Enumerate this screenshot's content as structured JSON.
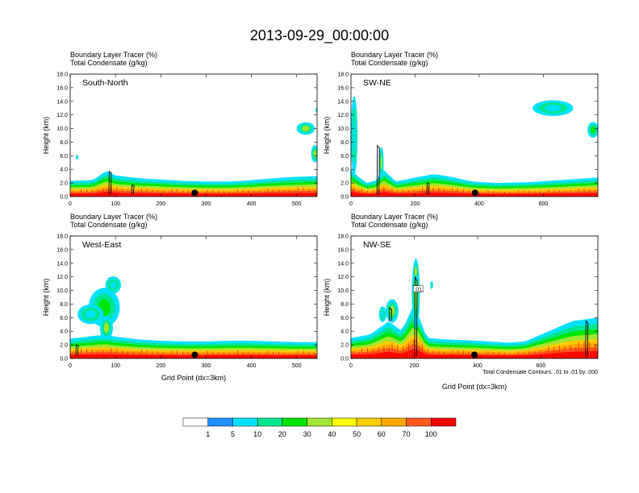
{
  "title": "2013-09-29_00:00:00",
  "chart_data": [
    {
      "type": "heatmap",
      "panel_label": "South-North",
      "subtitle_line1": "Boundary Layer Tracer   (%)",
      "subtitle_line2": "Total Condensate   (g/kg)",
      "xlabel": "",
      "ylabel": "Height (km)",
      "xlim": [
        0,
        545
      ],
      "ylim": [
        0,
        18
      ],
      "x_ticks": [
        0,
        100,
        200,
        300,
        400,
        500
      ],
      "x_tick_labels": [
        "0",
        "100",
        "200",
        "300",
        "400",
        "500"
      ],
      "y_ticks": [
        0,
        2,
        4,
        6,
        8,
        10,
        12,
        14,
        16,
        18
      ],
      "y_tick_labels": [
        "0.0",
        "2.0",
        "4.0",
        "6.0",
        "8.0",
        "10.0",
        "12.0",
        "14.0",
        "16.0",
        "18.0"
      ],
      "bl_top": [
        [
          0,
          2.3
        ],
        [
          50,
          2.4
        ],
        [
          80,
          3.8
        ],
        [
          100,
          3.1
        ],
        [
          150,
          2.7
        ],
        [
          200,
          2.5
        ],
        [
          250,
          2.3
        ],
        [
          300,
          2.2
        ],
        [
          350,
          2.2
        ],
        [
          400,
          2.4
        ],
        [
          450,
          2.7
        ],
        [
          500,
          2.9
        ],
        [
          545,
          3.0
        ]
      ],
      "clouds": [
        {
          "x": 520,
          "y": 10.0,
          "w": 35,
          "h": 1.6,
          "level": 30
        },
        {
          "x": 540,
          "y": 6.3,
          "w": 14,
          "h": 2.2,
          "level": 30
        },
        {
          "x": 545,
          "y": 12.7,
          "w": 6,
          "h": 0.7,
          "level": 5
        },
        {
          "x": 15,
          "y": 5.8,
          "w": 5,
          "h": 0.6,
          "level": 5
        }
      ],
      "contours": [
        {
          "x": 88,
          "y0": 0.3,
          "y1": 3.7
        },
        {
          "x": 138,
          "y0": 0.3,
          "y1": 1.7
        }
      ],
      "marker": {
        "x": 275,
        "y": 0.55
      }
    },
    {
      "type": "heatmap",
      "panel_label": "SW-NE",
      "subtitle_line1": "Boundary Layer Tracer   (%)",
      "subtitle_line2": "Total Condensate   (g/kg)",
      "xlabel": "",
      "ylabel": "Height (km)",
      "xlim": [
        0,
        770
      ],
      "ylim": [
        0,
        18
      ],
      "x_ticks": [
        0,
        200,
        400,
        600
      ],
      "x_tick_labels": [
        "0",
        "200",
        "400",
        "600"
      ],
      "y_ticks": [
        0,
        2,
        4,
        6,
        8,
        10,
        12,
        14,
        16,
        18
      ],
      "y_tick_labels": [
        "0.0",
        "2.0",
        "4.0",
        "6.0",
        "8.0",
        "10.0",
        "12.0",
        "14.0",
        "16.0",
        "18.0"
      ],
      "bl_top": [
        [
          0,
          4.0
        ],
        [
          20,
          3.0
        ],
        [
          50,
          2.0
        ],
        [
          80,
          2.4
        ],
        [
          100,
          4.0
        ],
        [
          140,
          2.2
        ],
        [
          200,
          2.8
        ],
        [
          260,
          3.3
        ],
        [
          300,
          3.0
        ],
        [
          380,
          2.2
        ],
        [
          450,
          2.0
        ],
        [
          550,
          2.1
        ],
        [
          650,
          2.4
        ],
        [
          770,
          2.8
        ]
      ],
      "clouds": [
        {
          "x": 630,
          "y": 13.0,
          "w": 110,
          "h": 2.0,
          "level": 5
        },
        {
          "x": 755,
          "y": 9.8,
          "w": 30,
          "h": 2.0,
          "level": 20
        },
        {
          "x": 10,
          "y": 9.0,
          "w": 18,
          "h": 10.0,
          "level": 5
        },
        {
          "x": 95,
          "y": 5.0,
          "w": 12,
          "h": 4.0,
          "level": 30
        }
      ],
      "contours": [
        {
          "x": 85,
          "y0": 0.3,
          "y1": 7.5
        },
        {
          "x": 240,
          "y0": 0.3,
          "y1": 2.0
        }
      ],
      "marker": {
        "x": 387,
        "y": 0.55
      }
    },
    {
      "type": "heatmap",
      "panel_label": "West-East",
      "subtitle_line1": "Boundary Layer Tracer   (%)",
      "subtitle_line2": "Total Condensate   (g/kg)",
      "xlabel": "Grid Point (dx=3km)",
      "ylabel": "Height (km)",
      "xlim": [
        0,
        545
      ],
      "ylim": [
        0,
        18
      ],
      "x_ticks": [
        0,
        100,
        200,
        300,
        400,
        500
      ],
      "x_tick_labels": [
        "0",
        "100",
        "200",
        "300",
        "400",
        "500"
      ],
      "y_ticks": [
        0,
        2,
        4,
        6,
        8,
        10,
        12,
        14,
        16,
        18
      ],
      "y_tick_labels": [
        "0.0",
        "2.0",
        "4.0",
        "6.0",
        "8.0",
        "10.0",
        "12.0",
        "14.0",
        "16.0",
        "18.0"
      ],
      "bl_top": [
        [
          0,
          2.9
        ],
        [
          50,
          3.3
        ],
        [
          80,
          3.5
        ],
        [
          100,
          3.2
        ],
        [
          150,
          2.8
        ],
        [
          200,
          2.6
        ],
        [
          250,
          2.5
        ],
        [
          300,
          2.5
        ],
        [
          350,
          2.6
        ],
        [
          400,
          2.6
        ],
        [
          450,
          2.5
        ],
        [
          500,
          2.4
        ],
        [
          545,
          2.4
        ]
      ],
      "clouds": [
        {
          "x": 75,
          "y": 7.5,
          "w": 60,
          "h": 5.0,
          "level": 20
        },
        {
          "x": 45,
          "y": 6.5,
          "w": 50,
          "h": 2.5,
          "level": 5
        },
        {
          "x": 80,
          "y": 4.5,
          "w": 25,
          "h": 3.0,
          "level": 30
        },
        {
          "x": 95,
          "y": 10.8,
          "w": 30,
          "h": 2.2,
          "level": 5
        }
      ],
      "contours": [
        {
          "x": 15,
          "y0": 0.3,
          "y1": 2.0
        }
      ],
      "marker": {
        "x": 275,
        "y": 0.55
      }
    },
    {
      "type": "heatmap",
      "panel_label": "NW-SE",
      "subtitle_line1": "Boundary Layer Tracer   (%)",
      "subtitle_line2": "Total Condensate   (g/kg)",
      "xlabel": "Grid Point (dx=3km)",
      "ylabel": "Height (km)",
      "xlim": [
        0,
        780
      ],
      "ylim": [
        0,
        18
      ],
      "x_ticks": [
        0,
        200,
        400,
        600
      ],
      "x_tick_labels": [
        "0",
        "200",
        "400",
        "600"
      ],
      "y_ticks": [
        0,
        2,
        4,
        6,
        8,
        10,
        12,
        14,
        16,
        18
      ],
      "y_tick_labels": [
        "0.0",
        "2.0",
        "4.0",
        "6.0",
        "8.0",
        "10.0",
        "12.0",
        "14.0",
        "16.0",
        "18.0"
      ],
      "bl_top": [
        [
          0,
          3.0
        ],
        [
          60,
          3.5
        ],
        [
          120,
          5.5
        ],
        [
          160,
          4.0
        ],
        [
          200,
          8.0
        ],
        [
          240,
          3.0
        ],
        [
          300,
          2.8
        ],
        [
          400,
          2.6
        ],
        [
          500,
          2.3
        ],
        [
          550,
          2.5
        ],
        [
          600,
          3.5
        ],
        [
          650,
          4.5
        ],
        [
          700,
          5.5
        ],
        [
          780,
          6.0
        ]
      ],
      "clouds": [
        {
          "x": 205,
          "y": 9.5,
          "w": 22,
          "h": 9.0,
          "level": 30
        },
        {
          "x": 205,
          "y": 12.8,
          "w": 14,
          "h": 2.5,
          "level": 50
        },
        {
          "x": 130,
          "y": 7.0,
          "w": 35,
          "h": 3.0,
          "level": 30
        },
        {
          "x": 100,
          "y": 6.5,
          "w": 20,
          "h": 2.0,
          "level": 5
        },
        {
          "x": 255,
          "y": 10.8,
          "w": 8,
          "h": 1.0,
          "level": 5
        }
      ],
      "contours": [
        {
          "x": 205,
          "y0": 0.3,
          "y1": 12.0
        },
        {
          "x": 125,
          "y0": 5.5,
          "y1": 7.5
        },
        {
          "x": 745,
          "y0": 0.3,
          "y1": 5.5
        }
      ],
      "contour_label": ".01",
      "marker": {
        "x": 390,
        "y": 0.55
      },
      "note": "Total Condensate Contours: .01 to .01 by .000"
    }
  ],
  "colorbar": {
    "levels": [
      "1",
      "5",
      "10",
      "20",
      "30",
      "40",
      "50",
      "60",
      "70",
      "100"
    ],
    "colors": [
      "#ffffff",
      "#1e90ff",
      "#00e0ff",
      "#00e68c",
      "#00e600",
      "#a0e632",
      "#ffff00",
      "#ffcc00",
      "#ffa500",
      "#ff5a1e",
      "#ff0000"
    ]
  }
}
